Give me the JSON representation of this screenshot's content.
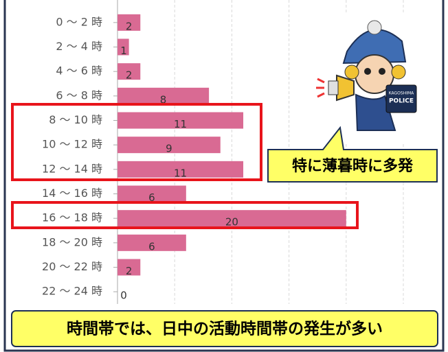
{
  "chart_data": {
    "type": "bar",
    "orientation": "horizontal",
    "categories": [
      "0 ～ 2 時",
      "2 ～ 4 時",
      "4 ～ 6 時",
      "6 ～ 8 時",
      "8 ～ 10 時",
      "10 ～ 12 時",
      "12 ～ 14 時",
      "14 ～ 16 時",
      "16 ～ 18 時",
      "18 ～ 20 時",
      "20 ～ 22 時",
      "22 ～ 24 時"
    ],
    "values": [
      2,
      1,
      2,
      8,
      11,
      9,
      11,
      6,
      20,
      6,
      2,
      0
    ],
    "color": "#d96a93",
    "xlim": [
      0,
      25
    ],
    "xticks": [
      0,
      5,
      10,
      15,
      20,
      25
    ],
    "grid": true,
    "annotations": [
      "特に薄暮時に多発",
      "時間帯では、日中の活動時間帯の発生が多い"
    ],
    "mascot_sign": [
      "KAGOSHIMA",
      "POLICE"
    ]
  }
}
